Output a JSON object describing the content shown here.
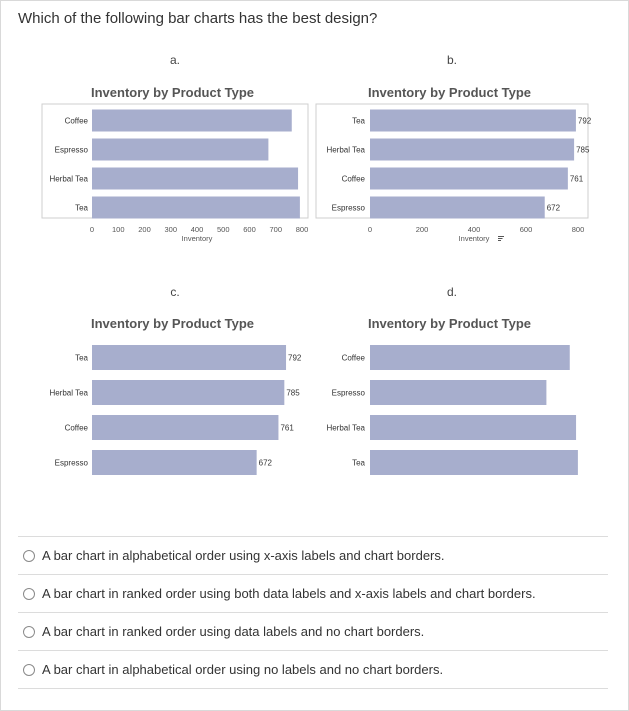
{
  "question": "Which of the following bar charts has the best design?",
  "colors": {
    "bar": "#a7aecd",
    "border": "#cfcfcf",
    "grid": "#dddddd"
  },
  "chart_data": [
    {
      "id": "a",
      "letter": "a.",
      "type": "bar",
      "orientation": "horizontal",
      "title": "Inventory by Product Type",
      "categories": [
        "Coffee",
        "Espresso",
        "Herbal Tea",
        "Tea"
      ],
      "values": [
        761,
        672,
        785,
        792
      ],
      "xlabel": "Inventory",
      "xlim": [
        0,
        800
      ],
      "xticks": [
        "0",
        "100",
        "200",
        "300",
        "400",
        "500",
        "600",
        "700",
        "800"
      ],
      "xtick_values": [
        0,
        100,
        200,
        300,
        400,
        500,
        600,
        700,
        800
      ],
      "data_labels": false,
      "border": true
    },
    {
      "id": "b",
      "letter": "b.",
      "type": "bar",
      "orientation": "horizontal",
      "title": "Inventory by Product Type",
      "categories": [
        "Tea",
        "Herbal Tea",
        "Coffee",
        "Espresso"
      ],
      "values": [
        792,
        785,
        761,
        672
      ],
      "data_label_values": [
        "792",
        "785",
        "761",
        "672"
      ],
      "xlabel": "Inventory",
      "xlim": [
        0,
        800
      ],
      "xticks": [
        "0",
        "200",
        "400",
        "600",
        "800"
      ],
      "xtick_values": [
        0,
        200,
        400,
        600,
        800
      ],
      "data_labels": true,
      "border": true
    },
    {
      "id": "c",
      "letter": "c.",
      "type": "bar",
      "orientation": "horizontal",
      "title": "Inventory by Product Type",
      "categories": [
        "Tea",
        "Herbal Tea",
        "Coffee",
        "Espresso"
      ],
      "values": [
        792,
        785,
        761,
        672
      ],
      "data_label_values": [
        "792",
        "785",
        "761",
        "672"
      ],
      "xlim": [
        0,
        800
      ],
      "data_labels": true,
      "border": false
    },
    {
      "id": "d",
      "letter": "d.",
      "type": "bar",
      "orientation": "horizontal",
      "title": "Inventory by Product Type",
      "categories": [
        "Coffee",
        "Espresso",
        "Herbal Tea",
        "Tea"
      ],
      "values": [
        761,
        672,
        785,
        792
      ],
      "xlim": [
        0,
        800
      ],
      "data_labels": false,
      "border": false
    }
  ],
  "options": [
    {
      "label": "A bar chart in alphabetical order using x-axis labels and chart borders."
    },
    {
      "label": "A bar chart in ranked order using both data labels and x-axis labels and chart borders."
    },
    {
      "label": "A bar chart in ranked order using data labels and no chart borders."
    },
    {
      "label": "A bar chart in alphabetical order using no labels and no chart borders."
    }
  ]
}
